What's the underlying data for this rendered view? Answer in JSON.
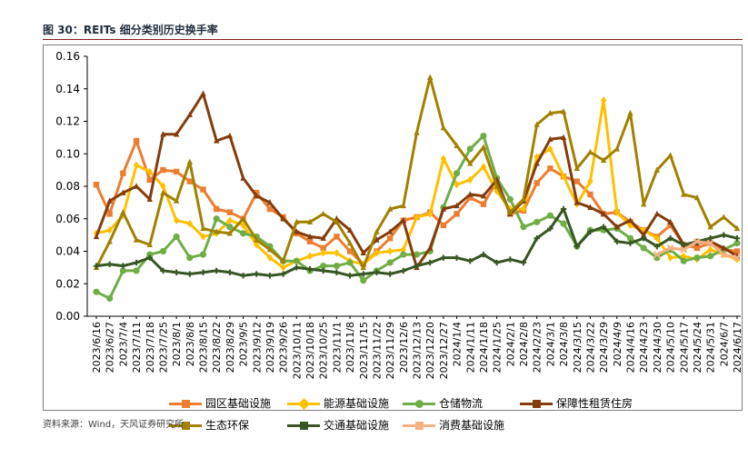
{
  "figure": {
    "title": "图 30：REITs 细分类别历史换手率",
    "source": "资料来源：Wind，天风证券研究所"
  },
  "chart_data": {
    "type": "line",
    "title": "REITs 细分类别历史换手率",
    "xlabel": "",
    "ylabel": "",
    "ylim": [
      0,
      0.16
    ],
    "yticks": [
      "0.00",
      "0.02",
      "0.04",
      "0.06",
      "0.08",
      "0.10",
      "0.12",
      "0.14",
      "0.16"
    ],
    "x": [
      "2023/6/16",
      "2023/6/27",
      "2023/7/4",
      "2023/7/11",
      "2023/7/18",
      "2023/7/25",
      "2023/8/1",
      "2023/8/8",
      "2023/8/15",
      "2023/8/22",
      "2023/8/29",
      "2023/9/5",
      "2023/9/12",
      "2023/9/19",
      "2023/9/26",
      "2023/10/11",
      "2023/10/18",
      "2023/10/25",
      "2023/11/1",
      "2023/11/8",
      "2023/11/15",
      "2023/11/22",
      "2023/11/29",
      "2023/12/6",
      "2023/12/13",
      "2023/12/20",
      "2023/12/27",
      "2024/1/4",
      "2024/1/11",
      "2024/1/18",
      "2024/1/25",
      "2024/2/1",
      "2024/2/8",
      "2024/2/23",
      "2024/3/1",
      "2024/3/8",
      "2024/3/15",
      "2024/3/22",
      "2024/3/29",
      "2024/4/9",
      "2024/4/16",
      "2024/4/23",
      "2024/4/30",
      "2024/5/10",
      "2024/5/17",
      "2024/5/24",
      "2024/5/31",
      "2024/6/7",
      "2024/6/17"
    ],
    "legend_position": "bottom",
    "series": [
      {
        "name": "园区基础设施",
        "color": "#ED7D31",
        "marker": "square",
        "values": [
          0.081,
          0.063,
          0.088,
          0.108,
          0.084,
          0.09,
          0.089,
          0.083,
          0.078,
          0.066,
          0.064,
          0.06,
          0.076,
          0.066,
          0.061,
          0.051,
          0.046,
          0.042,
          0.049,
          0.04,
          0.032,
          0.04,
          0.048,
          0.059,
          0.061,
          0.064,
          0.056,
          0.063,
          0.073,
          0.069,
          0.083,
          0.063,
          0.065,
          0.082,
          0.091,
          0.086,
          0.083,
          0.075,
          0.063,
          0.064,
          0.058,
          0.053,
          0.049,
          0.056,
          0.044,
          0.042,
          0.045,
          0.041,
          0.04
        ]
      },
      {
        "name": "能源基础设施",
        "color": "#FFC000",
        "marker": "diamond",
        "values": [
          0.051,
          0.053,
          0.062,
          0.093,
          0.089,
          0.08,
          0.059,
          0.057,
          0.049,
          0.051,
          0.059,
          0.056,
          0.044,
          0.036,
          0.03,
          0.034,
          0.037,
          0.039,
          0.039,
          0.034,
          0.032,
          0.039,
          0.04,
          0.041,
          0.061,
          0.063,
          0.097,
          0.081,
          0.084,
          0.092,
          0.077,
          0.066,
          0.066,
          0.098,
          0.103,
          0.086,
          0.069,
          0.083,
          0.133,
          0.064,
          0.056,
          0.053,
          0.048,
          0.036,
          0.037,
          0.035,
          0.041,
          0.038,
          0.035
        ]
      },
      {
        "name": "仓储物流",
        "color": "#70AD47",
        "marker": "circle",
        "values": [
          0.015,
          0.011,
          0.028,
          0.028,
          0.038,
          0.04,
          0.049,
          0.036,
          0.038,
          0.06,
          0.055,
          0.051,
          0.049,
          0.043,
          0.034,
          0.034,
          0.028,
          0.031,
          0.031,
          0.033,
          0.022,
          0.028,
          0.033,
          0.038,
          0.038,
          0.04,
          0.067,
          0.088,
          0.103,
          0.111,
          0.085,
          0.072,
          0.055,
          0.058,
          0.062,
          0.057,
          0.043,
          0.053,
          0.053,
          0.054,
          0.048,
          0.042,
          0.036,
          0.041,
          0.034,
          0.036,
          0.037,
          0.041,
          0.045
        ]
      },
      {
        "name": "保障性租赁住房",
        "color": "#843C0C",
        "marker": "triangle",
        "values": [
          0.049,
          0.071,
          0.076,
          0.08,
          0.072,
          0.112,
          0.112,
          0.124,
          0.137,
          0.108,
          0.111,
          0.085,
          0.074,
          0.07,
          0.06,
          0.052,
          0.049,
          0.048,
          0.06,
          0.053,
          0.039,
          0.047,
          0.052,
          0.059,
          0.03,
          0.042,
          0.066,
          0.068,
          0.075,
          0.074,
          0.084,
          0.063,
          0.071,
          0.094,
          0.109,
          0.11,
          0.07,
          0.067,
          0.063,
          0.055,
          0.059,
          0.05,
          0.063,
          0.058,
          0.044,
          0.045,
          0.046,
          0.042,
          0.037
        ]
      },
      {
        "name": "生态环保",
        "color": "#A08100",
        "marker": "triangle",
        "values": [
          0.03,
          0.046,
          0.064,
          0.047,
          0.044,
          0.076,
          0.071,
          0.095,
          0.054,
          0.052,
          0.051,
          0.06,
          0.047,
          0.041,
          0.034,
          0.058,
          0.058,
          0.063,
          0.058,
          0.045,
          0.03,
          0.052,
          0.066,
          0.068,
          0.113,
          0.147,
          0.116,
          0.105,
          0.094,
          0.104,
          0.08,
          0.064,
          0.072,
          0.118,
          0.125,
          0.126,
          0.091,
          0.101,
          0.096,
          0.103,
          0.125,
          0.069,
          0.09,
          0.099,
          0.075,
          0.073,
          0.055,
          0.061,
          0.054
        ]
      },
      {
        "name": "交通基础设施",
        "color": "#375623",
        "marker": "plus",
        "values": [
          0.031,
          0.032,
          0.031,
          0.033,
          0.036,
          0.028,
          0.027,
          0.026,
          0.027,
          0.028,
          0.027,
          0.025,
          0.026,
          0.025,
          0.026,
          0.03,
          0.029,
          0.028,
          0.027,
          0.025,
          0.026,
          0.027,
          0.026,
          0.028,
          0.031,
          0.033,
          0.036,
          0.036,
          0.034,
          0.038,
          0.033,
          0.035,
          0.033,
          0.048,
          0.054,
          0.066,
          0.043,
          0.052,
          0.055,
          0.046,
          0.045,
          0.048,
          0.043,
          0.048,
          0.044,
          0.046,
          0.048,
          0.05,
          0.048
        ]
      },
      {
        "name": "消费基础设施",
        "color": "#F4B183",
        "marker": "x",
        "values": [
          null,
          null,
          null,
          null,
          null,
          null,
          null,
          null,
          null,
          null,
          null,
          null,
          null,
          null,
          null,
          null,
          null,
          null,
          null,
          null,
          null,
          null,
          null,
          null,
          null,
          null,
          null,
          null,
          null,
          null,
          null,
          null,
          null,
          null,
          null,
          null,
          null,
          null,
          null,
          null,
          null,
          null,
          0.038,
          0.042,
          0.041,
          0.046,
          0.045,
          0.038,
          0.036
        ]
      }
    ]
  }
}
